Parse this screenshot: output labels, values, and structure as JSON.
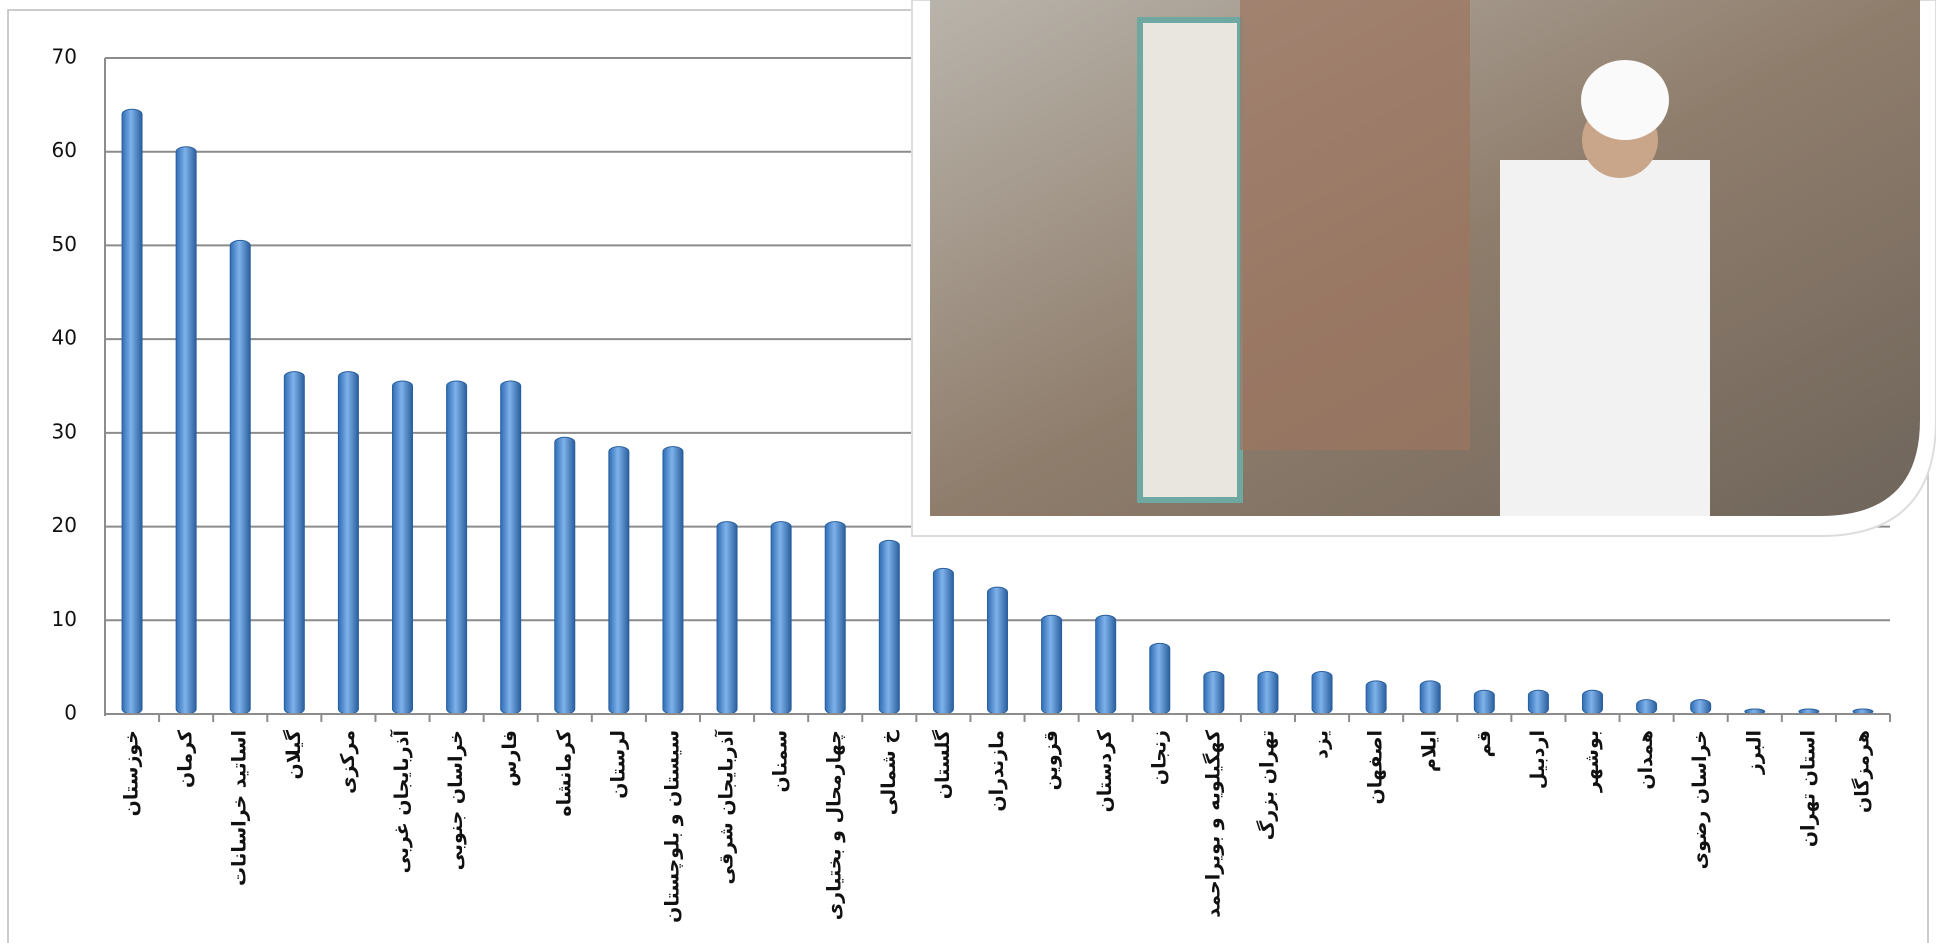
{
  "chart_data": {
    "type": "bar",
    "categories": [
      "خوزستان",
      "کرمان",
      "اساتید خراسانات",
      "گیلان",
      "مرکزی",
      "آذربایجان غربی",
      "خراسان جنوبی",
      "فارس",
      "کرمانشاه",
      "لرستان",
      "سیستان و بلوچستان",
      "آذربایجان شرقی",
      "سمنان",
      "چهارمحال و بختیاری",
      "خ شمالی",
      "گلستان",
      "مازندران",
      "قزوین",
      "کردستان",
      "زنجان",
      "کهگیلویه و بویراحمد",
      "تهران بزرگ",
      "یزد",
      "اصفهان",
      "ایلام",
      "قم",
      "اردبیل",
      "بوشهر",
      "همدان",
      "خراسان رضوی",
      "البرز",
      "استان تهران",
      "هرمزگان"
    ],
    "values": [
      64,
      60,
      50,
      36,
      36,
      35,
      35,
      35,
      29,
      28,
      28,
      20,
      20,
      20,
      18,
      15,
      13,
      10,
      10,
      7,
      4,
      4,
      4,
      3,
      3,
      2,
      2,
      2,
      1,
      1,
      0,
      0,
      0
    ],
    "color": "#4a8ad0",
    "ylim": [
      0,
      70
    ],
    "yticks": [
      0,
      10,
      20,
      30,
      40,
      50,
      60,
      70
    ],
    "grid": true
  }
}
